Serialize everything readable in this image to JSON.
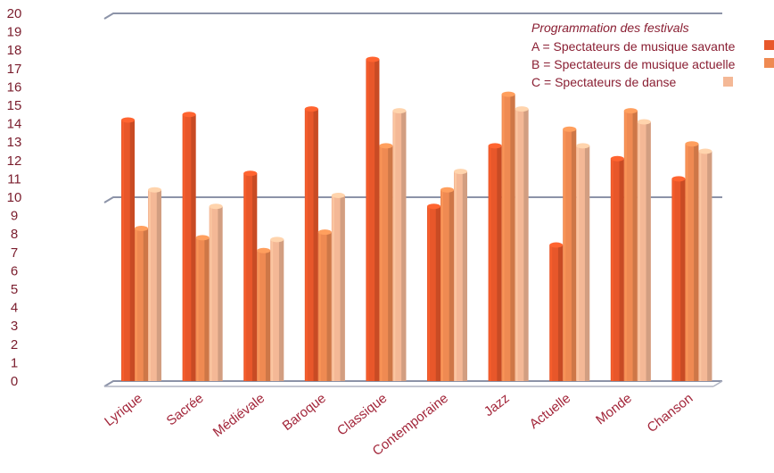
{
  "chart_data": {
    "type": "bar",
    "title": "",
    "xlabel": "",
    "ylabel": "",
    "ylim": [
      0,
      20
    ],
    "y_ticks": [
      "0",
      "1",
      "2",
      "3",
      "4",
      "5",
      "6",
      "7",
      "8",
      "9",
      "10",
      "11",
      "12",
      "13",
      "14",
      "15",
      "16",
      "17",
      "18",
      "19",
      "20"
    ],
    "categories": [
      "Lyrique",
      "Sacrée",
      "Médiévale",
      "Baroque",
      "Classique",
      "Contemporaine",
      "Jazz",
      "Actuelle",
      "Monde",
      "Chanson"
    ],
    "series": [
      {
        "name": "A = Spectateurs de musique savante",
        "color": "#e8572a",
        "values": [
          14.2,
          14.5,
          11.3,
          14.8,
          17.5,
          9.5,
          12.8,
          7.4,
          12.1,
          11.0
        ]
      },
      {
        "name": "B = Spectateurs de musique actuelle",
        "color": "#ef8a52",
        "values": [
          8.3,
          7.8,
          7.1,
          8.1,
          12.8,
          10.4,
          15.6,
          13.7,
          14.7,
          12.9
        ]
      },
      {
        "name": "C = Spectateurs de danse",
        "color": "#f4b896",
        "values": [
          10.4,
          9.5,
          7.7,
          10.1,
          14.7,
          11.4,
          14.8,
          12.8,
          14.1,
          12.5
        ]
      }
    ],
    "legend": {
      "title": "Programmation des festivals",
      "position": "top-right"
    },
    "grid": true
  }
}
